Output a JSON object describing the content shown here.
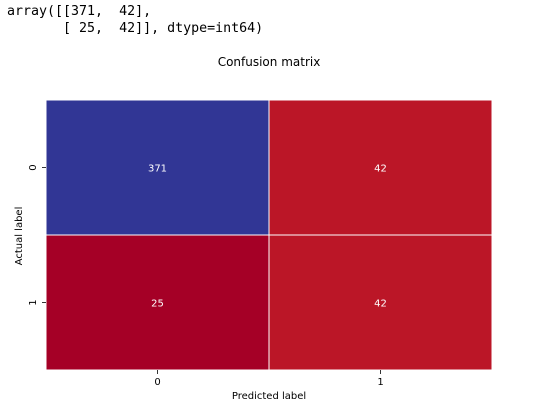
{
  "output": {
    "line1": "array([[371,  42],",
    "line2": "       [ 25,  42]], dtype=int64)"
  },
  "chart_data": {
    "type": "heatmap",
    "title": "Confusion matrix",
    "xlabel": "Predicted label",
    "ylabel": "Actual label",
    "x_categories": [
      "0",
      "1"
    ],
    "y_categories": [
      "0",
      "1"
    ],
    "values": [
      [
        371,
        42
      ],
      [
        25,
        42
      ]
    ],
    "cell_colors": [
      [
        "#313695",
        "#bb1627"
      ],
      [
        "#a50026",
        "#bb1627"
      ]
    ],
    "colormap": "RdYlBu",
    "grid_color": "#ffffff"
  }
}
